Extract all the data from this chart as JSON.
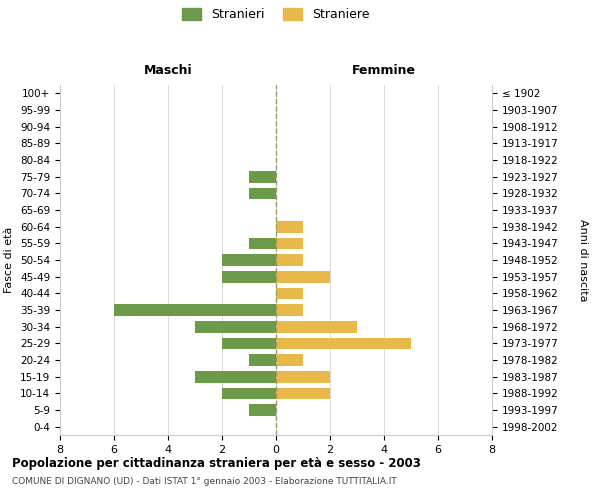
{
  "age_groups": [
    "0-4",
    "5-9",
    "10-14",
    "15-19",
    "20-24",
    "25-29",
    "30-34",
    "35-39",
    "40-44",
    "45-49",
    "50-54",
    "55-59",
    "60-64",
    "65-69",
    "70-74",
    "75-79",
    "80-84",
    "85-89",
    "90-94",
    "95-99",
    "100+"
  ],
  "birth_years": [
    "1998-2002",
    "1993-1997",
    "1988-1992",
    "1983-1987",
    "1978-1982",
    "1973-1977",
    "1968-1972",
    "1963-1967",
    "1958-1962",
    "1953-1957",
    "1948-1952",
    "1943-1947",
    "1938-1942",
    "1933-1937",
    "1928-1932",
    "1923-1927",
    "1918-1922",
    "1913-1917",
    "1908-1912",
    "1903-1907",
    "≤ 1902"
  ],
  "maschi": [
    0,
    1,
    2,
    3,
    1,
    2,
    3,
    6,
    0,
    2,
    2,
    1,
    0,
    0,
    1,
    1,
    0,
    0,
    0,
    0,
    0
  ],
  "femmine": [
    0,
    0,
    2,
    2,
    1,
    5,
    3,
    1,
    1,
    2,
    1,
    1,
    1,
    0,
    0,
    0,
    0,
    0,
    0,
    0,
    0
  ],
  "color_maschi": "#6a9a4a",
  "color_femmine": "#e8b84b",
  "title": "Popolazione per cittadinanza straniera per età e sesso - 2003",
  "subtitle": "COMUNE DI DIGNANO (UD) - Dati ISTAT 1° gennaio 2003 - Elaborazione TUTTITALIA.IT",
  "ylabel_left": "Fasce di età",
  "ylabel_right": "Anni di nascita",
  "xlabel_left": "Maschi",
  "xlabel_right": "Femmine",
  "legend_stranieri": "Stranieri",
  "legend_straniere": "Straniere",
  "xlim": 8,
  "background_color": "#ffffff",
  "grid_color": "#cccccc"
}
